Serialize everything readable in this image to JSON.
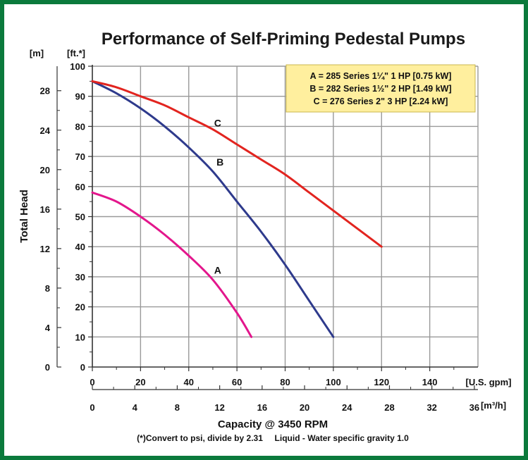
{
  "chart_data": {
    "type": "line",
    "title": "Performance of Self-Priming Pedestal Pumps",
    "ylabel": "Total Head",
    "xlabel": "Capacity @ 3450 RPM",
    "footnote": "(*)Convert to psi, divide by 2.31     Liquid - Water specific gravity 1.0",
    "x_unit": "[U.S. gpm]",
    "x2_unit": "[m³/h]",
    "y_unit": "[ft.*]",
    "y2_unit": "[m]",
    "xlim": [
      0,
      160
    ],
    "ylim": [
      0,
      100
    ],
    "x_ticks": [
      "0",
      "20",
      "40",
      "60",
      "80",
      "100",
      "120",
      "140"
    ],
    "x2_ticks": [
      "0",
      "4",
      "8",
      "12",
      "16",
      "20",
      "24",
      "28",
      "32",
      "36"
    ],
    "y_ticks": [
      "0",
      "10",
      "20",
      "30",
      "40",
      "50",
      "60",
      "70",
      "80",
      "90",
      "100"
    ],
    "y2_ticks": [
      "0",
      "4",
      "8",
      "12",
      "16",
      "20",
      "24",
      "28"
    ],
    "grid": true,
    "legend": [
      "A = 285 Series 1¼\" 1 HP [0.75 kW]",
      "B = 282 Series 1½\" 2 HP [1.49 kW]",
      "C = 276 Series 2\" 3 HP [2.24 kW]"
    ],
    "series": [
      {
        "name": "A",
        "color": "#e3168c",
        "x": [
          0,
          10,
          20,
          30,
          40,
          50,
          60,
          66
        ],
        "y": [
          58,
          55,
          50,
          44,
          37,
          29,
          18,
          10
        ]
      },
      {
        "name": "B",
        "color": "#2e3a8c",
        "x": [
          0,
          10,
          20,
          30,
          40,
          50,
          60,
          70,
          80,
          90,
          100
        ],
        "y": [
          95,
          91,
          86,
          80,
          73,
          65,
          55,
          45,
          34,
          22,
          10
        ]
      },
      {
        "name": "C",
        "color": "#e2241f",
        "x": [
          0,
          10,
          20,
          30,
          40,
          50,
          60,
          70,
          80,
          90,
          100,
          110,
          120
        ],
        "y": [
          95,
          93,
          90,
          87,
          83,
          79,
          74,
          69,
          64,
          58,
          52,
          46,
          40
        ]
      }
    ]
  },
  "colors": {
    "frame": "#0b7a3c",
    "legend_bg": "#ffef9e",
    "grid": "#999999"
  }
}
